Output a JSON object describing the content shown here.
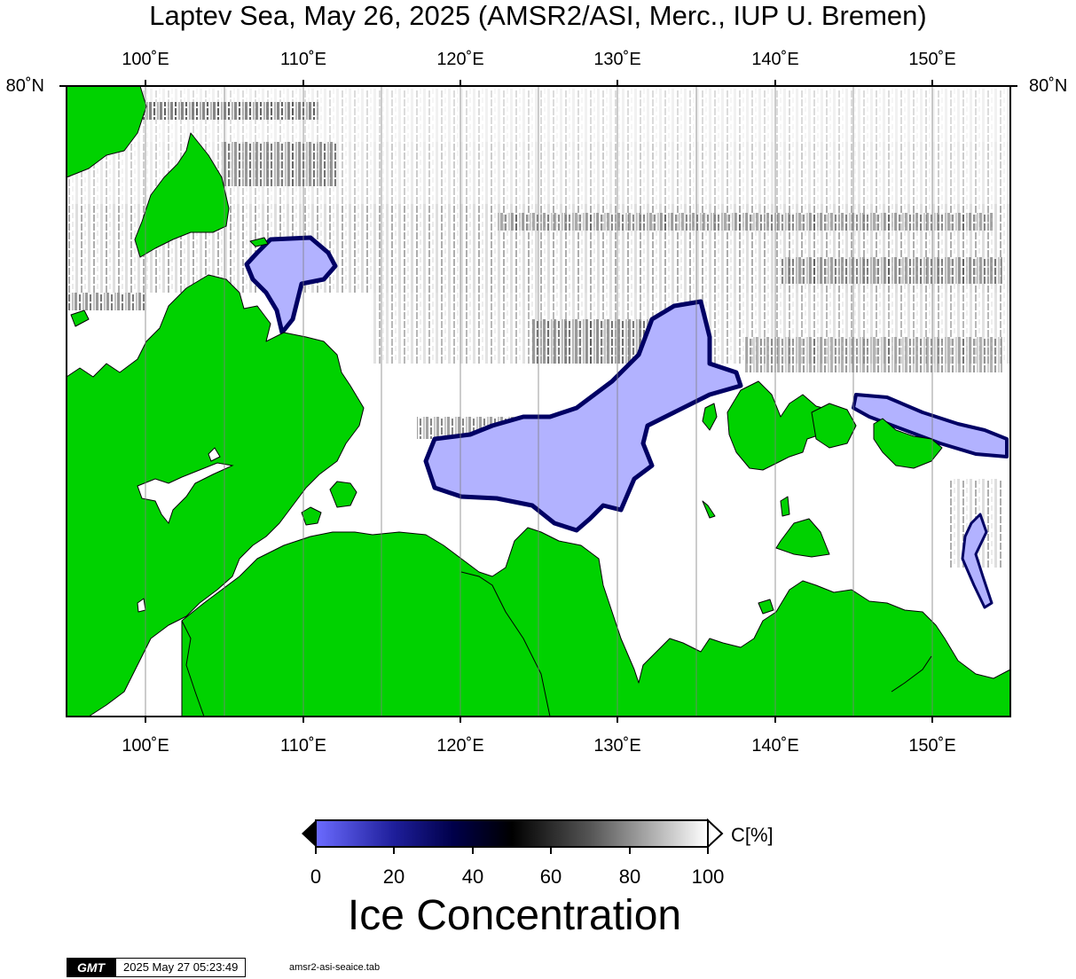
{
  "title": "Laptev Sea, May 26, 2025 (AMSR2/ASI, Merc., IUP U. Bremen)",
  "map": {
    "lon_labels": [
      "100˚E",
      "110˚E",
      "120˚E",
      "130˚E",
      "140˚E",
      "150˚E"
    ],
    "lat_left_label": "80˚N",
    "lat_right_label": "80˚N",
    "colors": {
      "land": "#00d200",
      "open_water": "#ffffff",
      "ice_low": "#b2b2ff",
      "ice_mid": "#000064",
      "ice_high": "#ffffff",
      "gridline": "#808080"
    }
  },
  "colorbar": {
    "unit": "C[%]",
    "ticks": [
      "0",
      "20",
      "40",
      "60",
      "80",
      "100"
    ],
    "title": "Ice Concentration"
  },
  "footer": {
    "logo": "GMT",
    "timestamp": "2025 May 27 05:23:49",
    "file": "amsr2-asi-seaice.tab"
  }
}
